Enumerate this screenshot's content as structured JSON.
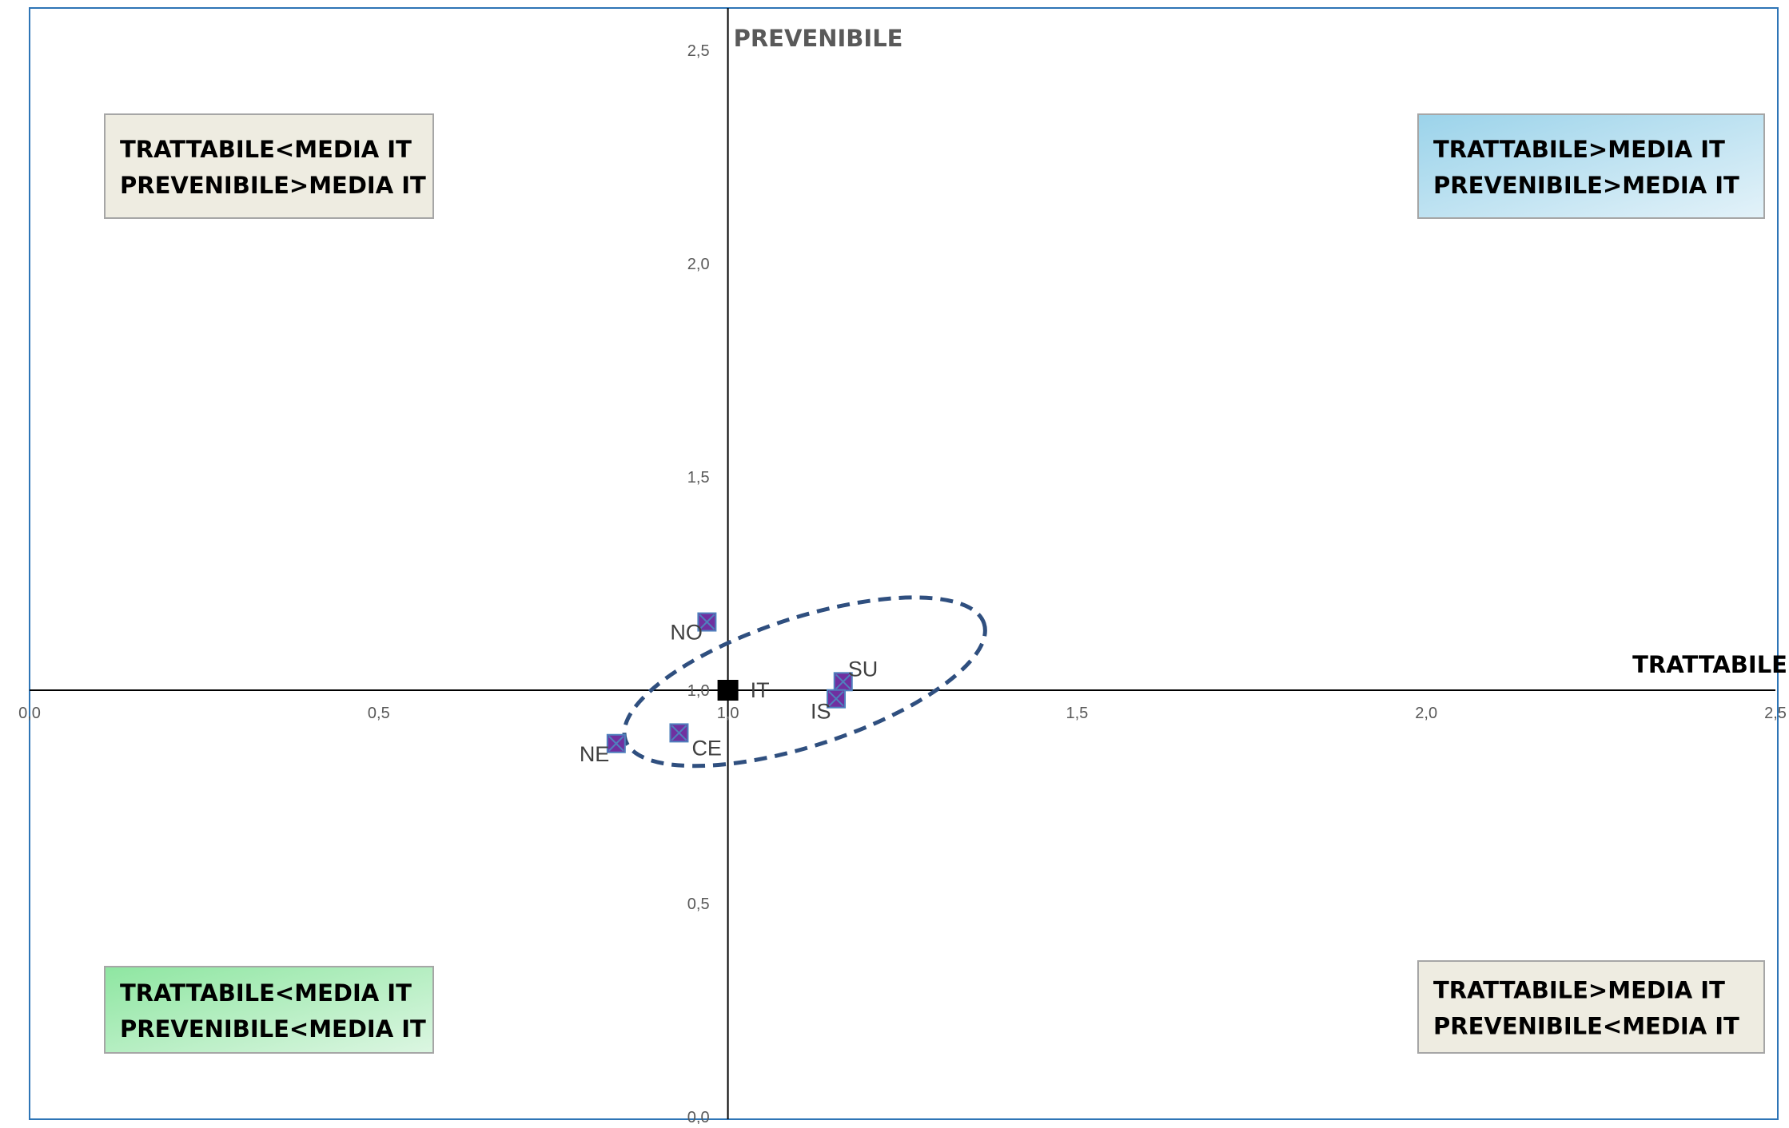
{
  "chart_data": {
    "type": "scatter",
    "xlabel": "TRATTABILE",
    "ylabel": "PREVENIBILE",
    "xlim": [
      0.0,
      2.5
    ],
    "ylim": [
      0.0,
      2.5
    ],
    "x_ticks": [
      "0,0",
      "0,5",
      "1,0",
      "1,5",
      "2,0",
      "2,5"
    ],
    "y_ticks": [
      "0,0",
      "0,5",
      "1,0",
      "1,5",
      "2,0",
      "2,5"
    ],
    "x_tick_values": [
      0.0,
      0.5,
      1.0,
      1.5,
      2.0,
      2.5
    ],
    "y_tick_values": [
      0.0,
      0.5,
      1.0,
      1.5,
      2.0,
      2.5
    ],
    "axes_cross_at": {
      "x": 1.0,
      "y": 1.0
    },
    "grid": false,
    "legend": "none",
    "points": [
      {
        "label": "NO",
        "x": 0.97,
        "y": 1.16,
        "marker": "square-x",
        "label_side": "left"
      },
      {
        "label": "NE",
        "x": 0.84,
        "y": 0.875,
        "marker": "square-x",
        "label_side": "left"
      },
      {
        "label": "CE",
        "x": 0.93,
        "y": 0.9,
        "marker": "square-x",
        "label_side": "below-right"
      },
      {
        "label": "SU",
        "x": 1.165,
        "y": 1.02,
        "marker": "square-x",
        "label_side": "above-right"
      },
      {
        "label": "IS",
        "x": 1.155,
        "y": 0.98,
        "marker": "square-x",
        "label_side": "below-left"
      },
      {
        "label": "IT",
        "x": 1.0,
        "y": 1.0,
        "marker": "filled-square",
        "label_side": "right"
      }
    ],
    "cluster_ellipse": {
      "cx": 1.11,
      "cy": 1.02,
      "rx": 0.27,
      "ry": 0.15,
      "rotation_deg": -18,
      "style": "dashed"
    },
    "quadrant_labels": [
      {
        "id": "top-left",
        "lines": [
          "TRATTABILE<MEDIA IT",
          "PREVENIBILE>MEDIA IT"
        ],
        "fill": "#eeece1"
      },
      {
        "id": "top-right",
        "lines": [
          "TRATTABILE>MEDIA IT",
          "PREVENIBILE>MEDIA IT"
        ],
        "fill": "gradient-blue"
      },
      {
        "id": "bottom-left",
        "lines": [
          "TRATTABILE<MEDIA IT",
          "PREVENIBILE<MEDIA IT"
        ],
        "fill": "gradient-green"
      },
      {
        "id": "bottom-right",
        "lines": [
          "TRATTABILE>MEDIA IT",
          "PREVENIBILE<MEDIA IT"
        ],
        "fill": "#eeece1"
      }
    ],
    "colors": {
      "frame": "#2e75b6",
      "axis": "#000000",
      "marker_fill": "#7030a0",
      "marker_edge": "#4f81bd",
      "marker_cross": "#4f81bd",
      "it_marker": "#000000",
      "ellipse": "#2f4f7f",
      "ylabel": "#595959",
      "xlabel": "#000000",
      "quadrant_neutral": "#eeece1",
      "blue_start": "#9bd3ea",
      "blue_end": "#e3f2f9",
      "green_start": "#8ee6a1",
      "green_end": "#dcf6e2"
    }
  }
}
